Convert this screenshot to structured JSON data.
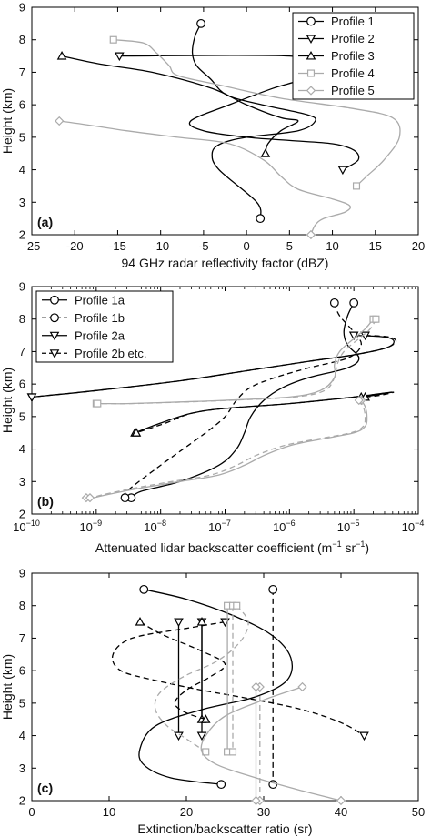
{
  "chart_data": [
    {
      "type": "line",
      "panel": "(a)",
      "xlabel": "94 GHz radar reflectivity factor (dBZ)",
      "ylabel": "Height (km)",
      "xlim": [
        -25,
        20
      ],
      "ylim": [
        2,
        9
      ],
      "xticks": [
        -25,
        -20,
        -15,
        -10,
        -5,
        0,
        5,
        10,
        15,
        20
      ],
      "yticks": [
        2,
        3,
        4,
        5,
        6,
        7,
        8,
        9
      ],
      "legend_position": "top-right",
      "legend": [
        {
          "label": "Profile 1",
          "marker": "circle",
          "color": "#000000",
          "dash": "solid"
        },
        {
          "label": "Profile 2",
          "marker": "tri-down",
          "color": "#000000",
          "dash": "solid"
        },
        {
          "label": "Profile 3",
          "marker": "tri-up",
          "color": "#000000",
          "dash": "solid"
        },
        {
          "label": "Profile 4",
          "marker": "square",
          "color": "#aaaaaa",
          "dash": "solid"
        },
        {
          "label": "Profile 5",
          "marker": "diamond",
          "color": "#aaaaaa",
          "dash": "solid"
        }
      ],
      "series": [
        {
          "color": "#000000",
          "dash": "solid",
          "marker": "circle",
          "marker_ends": "both",
          "x": [
            -5.3,
            -6.0,
            -6.3,
            -5.8,
            -4.2,
            -2.3,
            1.8,
            7.0,
            8.0,
            6.0,
            0.0,
            -3.0,
            -4.0,
            -3.2,
            1.2,
            1.6
          ],
          "y": [
            8.5,
            8.1,
            7.6,
            7.2,
            6.8,
            6.3,
            6.0,
            5.7,
            5.5,
            5.2,
            5.0,
            4.8,
            4.5,
            4.0,
            3.0,
            2.5
          ]
        },
        {
          "color": "#000000",
          "dash": "solid",
          "marker": "tri-down",
          "marker_ends": "both",
          "x": [
            -14.8,
            5.0,
            7.0,
            6.5,
            3.0,
            -2.0,
            -6.5,
            -5.0,
            0.0,
            5.0,
            10.0,
            12.5,
            13.0,
            11.2
          ],
          "y": [
            7.5,
            7.5,
            7.2,
            6.8,
            6.5,
            6.0,
            5.5,
            5.2,
            5.0,
            4.9,
            4.8,
            4.6,
            4.3,
            4.0
          ]
        },
        {
          "color": "#000000",
          "dash": "solid",
          "marker": "tri-up",
          "marker_ends": "both",
          "x": [
            -21.5,
            -17.0,
            -11.0,
            -4.0,
            0.0,
            4.0,
            6.0,
            4.0,
            2.5,
            2.2
          ],
          "y": [
            7.5,
            7.25,
            7.0,
            6.5,
            6.0,
            5.6,
            5.5,
            5.2,
            4.8,
            4.5
          ]
        },
        {
          "color": "#aaaaaa",
          "dash": "solid",
          "marker": "square",
          "marker_ends": "both",
          "x": [
            -15.5,
            -12.0,
            -10.5,
            -9.0,
            -8.0,
            -3.0,
            4.0,
            12.0,
            17.0,
            17.8,
            16.0,
            14.0,
            12.8
          ],
          "y": [
            8.0,
            7.9,
            7.6,
            7.2,
            6.9,
            6.6,
            6.2,
            5.9,
            5.6,
            5.0,
            4.3,
            3.8,
            3.5
          ]
        },
        {
          "color": "#aaaaaa",
          "dash": "solid",
          "marker": "diamond",
          "marker_ends": "both",
          "x": [
            -21.8,
            -19.0,
            -14.0,
            -8.0,
            -2.0,
            2.0,
            4.0,
            6.0,
            10.0,
            12.0,
            11.5,
            9.0,
            8.0,
            7.5
          ],
          "y": [
            5.5,
            5.4,
            5.2,
            5.0,
            4.8,
            4.3,
            3.8,
            3.4,
            3.1,
            2.9,
            2.7,
            2.5,
            2.3,
            2.0
          ]
        }
      ]
    },
    {
      "type": "line",
      "panel": "(b)",
      "xlabel_main": "Attenuated lidar backscatter coefficient (m",
      "xlabel_sup1": "−1",
      "xlabel_mid": " sr",
      "xlabel_sup2": "−1",
      "xlabel_end": ")",
      "ylabel": "Height (km)",
      "xscale": "log",
      "xlim": [
        1e-10,
        0.0001
      ],
      "ylim": [
        2,
        9
      ],
      "xticks": [
        1e-10,
        1e-09,
        1e-08,
        1e-07,
        1e-06,
        1e-05,
        0.0001
      ],
      "xtick_labels": [
        {
          "base": "10",
          "exp": "−10"
        },
        {
          "base": "10",
          "exp": "−9"
        },
        {
          "base": "10",
          "exp": "−8"
        },
        {
          "base": "10",
          "exp": "−7"
        },
        {
          "base": "10",
          "exp": "−6"
        },
        {
          "base": "10",
          "exp": "−5"
        },
        {
          "base": "10",
          "exp": "−4"
        }
      ],
      "yticks": [
        2,
        3,
        4,
        5,
        6,
        7,
        8,
        9
      ],
      "legend_position": "top-left",
      "legend": [
        {
          "label": "Profile 1a",
          "marker": "circle",
          "color": "#000000",
          "dash": "solid"
        },
        {
          "label": "Profile 1b",
          "marker": "circle",
          "color": "#000000",
          "dash": "dashed"
        },
        {
          "label": "Profile 2a",
          "marker": "tri-down",
          "color": "#000000",
          "dash": "solid"
        },
        {
          "label": "Profile 2b etc.",
          "marker": "tri-down",
          "color": "#000000",
          "dash": "dashed"
        }
      ],
      "series": [
        {
          "color": "#000000",
          "dash": "solid",
          "marker": "circle",
          "marker_ends": "both",
          "x": [
            1e-05,
            8e-06,
            7e-06,
            8e-06,
            1.2e-05,
            8e-06,
            2e-06,
            8e-07,
            4e-07,
            2.5e-07,
            2e-07,
            1.5e-07,
            8e-08,
            2e-08,
            5e-09,
            3.5e-09
          ],
          "y": [
            8.5,
            8.1,
            7.6,
            7.2,
            6.8,
            6.5,
            6.2,
            5.9,
            5.5,
            5.0,
            4.5,
            4.0,
            3.5,
            3.0,
            2.7,
            2.5
          ]
        },
        {
          "color": "#000000",
          "dash": "dashed",
          "marker": "circle",
          "marker_ends": "both",
          "x": [
            5e-06,
            6e-06,
            1e-05,
            1.3e-05,
            8e-06,
            2e-06,
            6e-07,
            2.5e-07,
            1.5e-07,
            1e-07,
            5e-08,
            1e-08,
            3e-09,
            2.8e-09
          ],
          "y": [
            8.5,
            8.1,
            7.6,
            7.2,
            6.8,
            6.5,
            6.2,
            5.9,
            5.5,
            5.0,
            4.5,
            3.5,
            2.7,
            2.5
          ]
        },
        {
          "color": "#000000",
          "dash": "solid",
          "marker": "tri-down",
          "marker_ends": "both",
          "x": [
            1e-05,
            3e-05,
            4.2e-05,
            3e-05,
            1e-05,
            2e-06,
            2e-07,
            2e-08,
            1e-09,
            1e-10
          ],
          "y": [
            7.5,
            7.45,
            7.3,
            7.1,
            6.9,
            6.7,
            6.4,
            6.1,
            5.8,
            5.6
          ]
        },
        {
          "color": "#000000",
          "dash": "dashed",
          "marker": "tri-down",
          "marker_ends": "both",
          "x": [
            1.5e-05,
            3.5e-05,
            4.5e-05,
            3e-05,
            1e-05,
            2e-06,
            2e-07,
            2e-08,
            1e-09,
            1e-10
          ],
          "y": [
            7.5,
            7.45,
            7.3,
            7.1,
            6.9,
            6.7,
            6.4,
            6.1,
            5.8,
            5.6
          ]
        },
        {
          "color": "#000000",
          "dash": "solid",
          "marker": "tri-up",
          "marker_ends": "both",
          "x": [
            1.3e-05,
            2e-05,
            3.8e-05,
            1e-05,
            1e-06,
            1e-07,
            3e-08,
            1e-08,
            4e-09
          ],
          "y": [
            5.6,
            5.65,
            5.75,
            5.6,
            5.4,
            5.25,
            5.1,
            4.8,
            4.5
          ]
        },
        {
          "color": "#000000",
          "dash": "dashed",
          "marker": "tri-up",
          "marker_ends": "both",
          "x": [
            1.5e-05,
            2.5e-05,
            4e-05,
            1e-05,
            1e-06,
            1e-07,
            3e-08,
            1.2e-08,
            4.2e-09
          ],
          "y": [
            5.6,
            5.65,
            5.75,
            5.6,
            5.4,
            5.25,
            5.1,
            4.8,
            4.5
          ]
        },
        {
          "color": "#aaaaaa",
          "dash": "solid",
          "marker": "square",
          "marker_ends": "both",
          "x": [
            2e-05,
            1.5e-05,
            1e-05,
            6e-06,
            5e-06,
            5e-06,
            3e-06,
            1e-06,
            1e-07,
            2e-08,
            3e-09,
            1.5e-09,
            1e-09
          ],
          "y": [
            8.0,
            7.7,
            7.4,
            7.0,
            6.6,
            6.2,
            5.8,
            5.6,
            5.5,
            5.45,
            5.4,
            5.4,
            5.4
          ]
        },
        {
          "color": "#aaaaaa",
          "dash": "dashed",
          "marker": "square",
          "marker_ends": "both",
          "x": [
            2.2e-05,
            1.8e-05,
            1.2e-05,
            7e-06,
            5.5e-06,
            5e-06,
            3.5e-06,
            1.2e-06,
            1.2e-07,
            2.5e-08,
            3.5e-09,
            1.6e-09,
            1.05e-09
          ],
          "y": [
            8.0,
            7.7,
            7.4,
            7.0,
            6.6,
            6.2,
            5.8,
            5.6,
            5.5,
            5.45,
            5.4,
            5.4,
            5.4
          ]
        },
        {
          "color": "#aaaaaa",
          "dash": "solid",
          "marker": "diamond",
          "marker_ends": "both",
          "x": [
            1.3e-05,
            1.5e-05,
            1.6e-05,
            1.5e-05,
            1e-05,
            3e-06,
            1e-06,
            4e-07,
            2e-07,
            8e-08,
            2e-08,
            5e-09,
            1.5e-09,
            9e-10,
            7e-10
          ],
          "y": [
            5.5,
            5.3,
            5.0,
            4.7,
            4.5,
            4.3,
            4.1,
            3.8,
            3.5,
            3.2,
            3.0,
            2.8,
            2.6,
            2.5,
            2.5
          ]
        },
        {
          "color": "#aaaaaa",
          "dash": "dashed",
          "marker": "diamond",
          "marker_ends": "both",
          "x": [
            1.2e-05,
            1.4e-05,
            1.5e-05,
            1.4e-05,
            9e-06,
            2.5e-06,
            8e-07,
            3e-07,
            1.5e-07,
            6e-08,
            1.5e-08,
            4e-09,
            1.3e-09,
            8.5e-10,
            8e-10
          ],
          "y": [
            5.5,
            5.3,
            5.0,
            4.7,
            4.5,
            4.3,
            4.1,
            3.8,
            3.5,
            3.2,
            3.0,
            2.8,
            2.6,
            2.5,
            2.5
          ]
        }
      ]
    },
    {
      "type": "line",
      "panel": "(c)",
      "xlabel": "Extinction/backscatter ratio (sr)",
      "ylabel": "Height (km)",
      "xlim": [
        0,
        50
      ],
      "ylim": [
        2,
        9
      ],
      "xticks": [
        0,
        10,
        20,
        30,
        40,
        50
      ],
      "yticks": [
        2,
        3,
        4,
        5,
        6,
        7,
        8,
        9
      ],
      "series": [
        {
          "color": "#000000",
          "dash": "solid",
          "marker": "circle",
          "marker_ends": "both",
          "x": [
            14.5,
            20.0,
            26.0,
            31.0,
            33.5,
            33.0,
            29.0,
            22.0,
            16.0,
            14.0,
            14.5,
            18.0,
            24.5
          ],
          "y": [
            8.5,
            8.2,
            7.7,
            7.1,
            6.4,
            5.7,
            5.2,
            4.8,
            4.3,
            3.6,
            3.1,
            2.7,
            2.5
          ]
        },
        {
          "color": "#000000",
          "dash": "dashed",
          "marker": "circle",
          "marker_ends": "both",
          "x": [
            31.2,
            31.2
          ],
          "y": [
            8.5,
            2.5
          ]
        },
        {
          "color": "#000000",
          "dash": "solid",
          "marker": "tri-down",
          "marker_ends": "both",
          "x": [
            19.0,
            19.0
          ],
          "y": [
            7.5,
            4.0
          ]
        },
        {
          "color": "#000000",
          "dash": "solid",
          "marker": "tri-down",
          "marker_ends": "both",
          "x": [
            22.0,
            22.0
          ],
          "y": [
            7.5,
            4.0
          ]
        },
        {
          "color": "#000000",
          "dash": "dashed",
          "marker": "tri-down",
          "marker_ends": "both",
          "x": [
            25.0,
            20.0,
            13.0,
            10.5,
            11.5,
            16.0,
            22.0,
            29.0,
            35.0,
            40.0,
            43.0
          ],
          "y": [
            7.5,
            7.3,
            7.0,
            6.5,
            6.0,
            5.7,
            5.4,
            5.1,
            4.8,
            4.4,
            4.0
          ]
        },
        {
          "color": "#000000",
          "dash": "solid",
          "marker": "tri-up",
          "marker_ends": "both",
          "x": [
            22.0,
            22.0
          ],
          "y": [
            7.5,
            4.5
          ]
        },
        {
          "color": "#000000",
          "dash": "dashed",
          "marker": "tri-up",
          "marker_ends": "both",
          "x": [
            14.0,
            17.0,
            22.0,
            25.0,
            23.0,
            20.0,
            18.5,
            20.0,
            22.5
          ],
          "y": [
            7.5,
            7.1,
            6.6,
            6.2,
            5.8,
            5.4,
            5.0,
            4.7,
            4.5
          ]
        },
        {
          "color": "#aaaaaa",
          "dash": "solid",
          "marker": "square",
          "marker_ends": "both",
          "x": [
            25.3,
            25.3
          ],
          "y": [
            8.0,
            3.5
          ]
        },
        {
          "color": "#aaaaaa",
          "dash": "dashed",
          "marker": "square",
          "marker_ends": "both",
          "x": [
            26.0,
            26.0
          ],
          "y": [
            8.0,
            3.5
          ]
        },
        {
          "color": "#aaaaaa",
          "dash": "dashed",
          "marker": "square",
          "marker_ends": "both",
          "x": [
            26.5,
            28.0,
            27.0,
            24.0,
            19.5,
            16.5,
            16.0,
            17.5,
            20.0,
            22.5
          ],
          "y": [
            8.0,
            7.5,
            6.9,
            6.3,
            5.8,
            5.3,
            4.8,
            4.3,
            3.9,
            3.5
          ]
        },
        {
          "color": "#aaaaaa",
          "dash": "solid",
          "marker": "diamond",
          "marker_ends": "both",
          "x": [
            35.0,
            30.0,
            25.0,
            22.5,
            22.0,
            24.0,
            29.0,
            35.0,
            40.0
          ],
          "y": [
            5.5,
            5.1,
            4.6,
            4.0,
            3.5,
            3.1,
            2.7,
            2.3,
            2.0
          ]
        },
        {
          "color": "#aaaaaa",
          "dash": "dashed",
          "marker": "diamond",
          "marker_ends": "both",
          "x": [
            29.5,
            29.5
          ],
          "y": [
            5.5,
            2.0
          ]
        },
        {
          "color": "#aaaaaa",
          "dash": "solid",
          "marker": "diamond",
          "marker_ends": "both",
          "x": [
            29.0,
            29.0
          ],
          "y": [
            5.5,
            2.0
          ]
        }
      ]
    }
  ]
}
